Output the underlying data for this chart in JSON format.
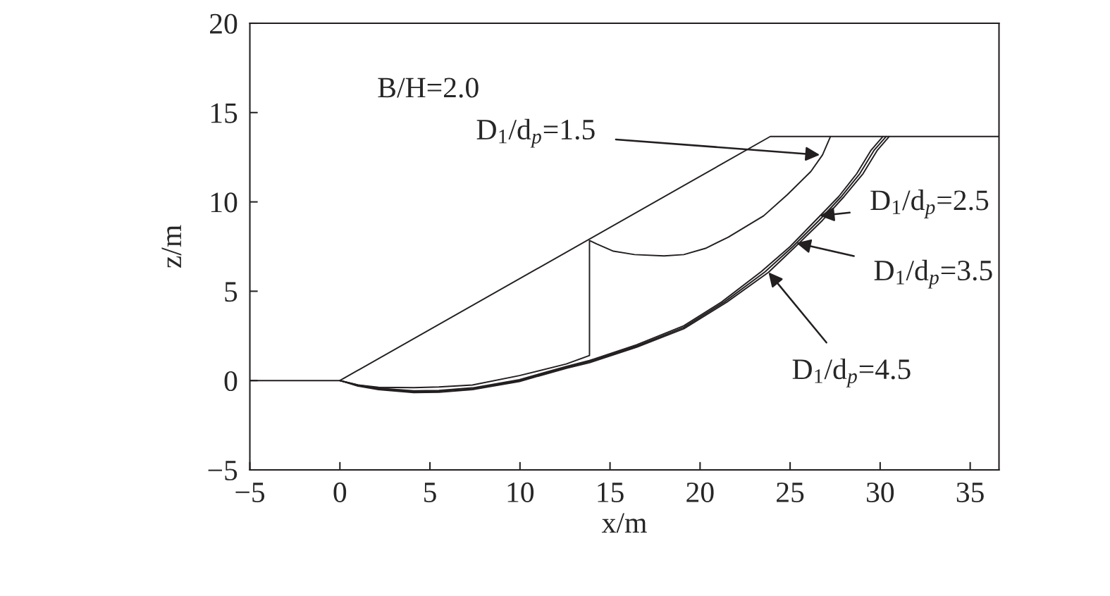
{
  "chart_data": {
    "type": "line",
    "xlabel": "x/m",
    "ylabel": "z/m",
    "xlim": [
      -5,
      36.6
    ],
    "ylim": [
      -5,
      20
    ],
    "xticks": [
      {
        "value": -5,
        "label": "−5"
      },
      0,
      5,
      10,
      15,
      20,
      25,
      30,
      35
    ],
    "yticks": [
      {
        "value": -5,
        "label": "−5"
      },
      0,
      5,
      10,
      15,
      20
    ],
    "grid": false,
    "marker": "none",
    "line_style": "solid",
    "series": [
      {
        "color": "#231f20",
        "x": [
          -5,
          0,
          23.9,
          36.6
        ],
        "values": [
          0,
          0,
          13.66,
          13.66
        ]
      },
      {
        "color": "#231f20",
        "x": [
          0,
          1,
          2.14,
          4.1,
          5.5,
          7.36,
          9.97,
          12.57,
          13.86,
          13.86,
          14.27,
          15.19,
          16.36,
          18.0,
          19.1,
          20.3,
          21.57,
          23.53,
          24.84,
          26.15,
          26.8,
          27.24
        ],
        "values": [
          0,
          -0.25,
          -0.38,
          -0.4,
          -0.36,
          -0.25,
          0.28,
          0.93,
          1.4,
          7.84,
          7.64,
          7.24,
          7.05,
          6.98,
          7.05,
          7.4,
          8.03,
          9.22,
          10.4,
          11.7,
          12.63,
          13.66
        ]
      },
      {
        "color": "#231f20",
        "x": [
          0,
          1,
          2.14,
          4.1,
          5.5,
          7.36,
          9.97,
          12.57,
          13.86,
          16.48,
          19.1,
          21.2,
          23.4,
          25.0,
          26.4,
          27.7,
          28.7,
          29.5,
          30.15
        ],
        "values": [
          0,
          -0.25,
          -0.43,
          -0.57,
          -0.55,
          -0.41,
          0.05,
          0.79,
          1.12,
          2.0,
          3.07,
          4.4,
          6.1,
          7.5,
          8.95,
          10.3,
          11.58,
          12.9,
          13.66
        ]
      },
      {
        "color": "#231f20",
        "x": [
          0,
          1,
          2.14,
          4.1,
          5.5,
          7.36,
          9.97,
          12.57,
          13.86,
          16.48,
          19.1,
          21.35,
          23.6,
          25.15,
          26.6,
          27.85,
          28.87,
          29.67,
          30.33
        ],
        "values": [
          0,
          -0.28,
          -0.47,
          -0.62,
          -0.6,
          -0.46,
          0.0,
          0.74,
          1.06,
          1.93,
          2.98,
          4.4,
          6.08,
          7.5,
          8.96,
          10.3,
          11.58,
          12.9,
          13.66
        ]
      },
      {
        "color": "#231f20",
        "x": [
          0,
          1,
          2.14,
          4.1,
          5.5,
          7.36,
          9.97,
          12.57,
          13.86,
          16.48,
          19.1,
          21.5,
          23.8,
          25.3,
          26.8,
          28.0,
          29.05,
          29.85,
          30.5
        ],
        "values": [
          0,
          -0.31,
          -0.51,
          -0.67,
          -0.65,
          -0.51,
          -0.05,
          0.69,
          1.0,
          1.87,
          2.9,
          4.4,
          6.06,
          7.5,
          8.97,
          10.3,
          11.58,
          12.9,
          13.66
        ]
      }
    ],
    "annotations": [
      "B/H=2.0",
      {
        "text": "D$_{1}$/d$_{p}$=1.5",
        "x": 26.65,
        "y": 12.63
      },
      {
        "text": "D$_{1}$/d$_{p}$=2.5",
        "x": 26.66,
        "y": 9.22
      },
      {
        "text": "D$_{1}$/d$_{p}$=3.5",
        "x": 25.35,
        "y": 7.7
      },
      {
        "text": "D$_{1}$/d$_{p}$=4.5",
        "x": 23.8,
        "y": 6.06
      }
    ]
  }
}
